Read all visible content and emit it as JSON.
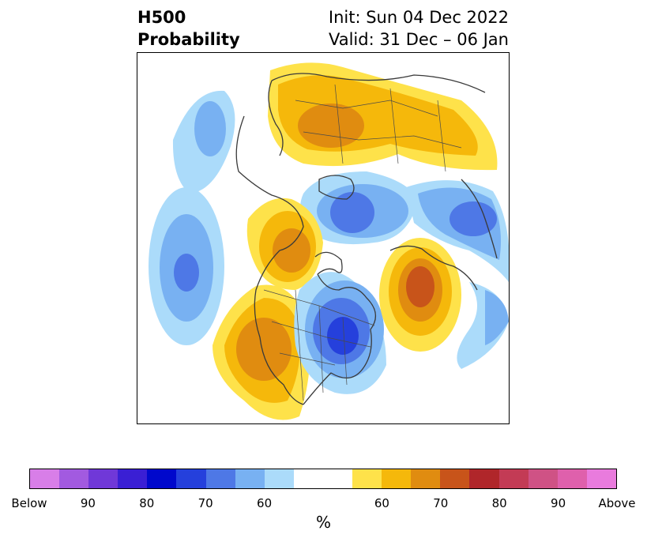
{
  "title": {
    "left_line1": "H500",
    "left_line2": "Probability",
    "right_line1": "Init: Sun 04 Dec 2022",
    "right_line2": "Valid: 31 Dec – 06 Jan"
  },
  "colorbar": {
    "below_colors": [
      "#d87ee8",
      "#a25ae0",
      "#7038d8",
      "#3a1fd4",
      "#0008cc",
      "#2540dc",
      "#4e78e6",
      "#78b1f2",
      "#abdbfa"
    ],
    "neutral_color": "#ffffff",
    "above_colors": [
      "#fee24a",
      "#f5b80b",
      "#e08c10",
      "#c8541a",
      "#b0262a",
      "#c33b55",
      "#cf5285",
      "#df60ac",
      "#e97bdd"
    ],
    "tick_labels": [
      "Below",
      "90",
      "80",
      "70",
      "60",
      "60",
      "70",
      "80",
      "90",
      "Above"
    ],
    "unit_label": "%"
  },
  "map": {
    "anomalies": [
      {
        "sign": "below",
        "region": "North Pacific",
        "levels": [
          1,
          2,
          3
        ]
      },
      {
        "sign": "below",
        "region": "Bering / Alaska north",
        "levels": [
          1,
          2
        ]
      },
      {
        "sign": "above",
        "region": "Siberia / Arctic",
        "levels": [
          1,
          2,
          3
        ]
      },
      {
        "sign": "below",
        "region": "Greenland / Arctic",
        "levels": [
          1,
          2,
          3
        ]
      },
      {
        "sign": "below",
        "region": "Scandinavia / N. Europe",
        "levels": [
          1,
          2,
          3
        ]
      },
      {
        "sign": "above",
        "region": "Western Canada / Alaska",
        "levels": [
          1,
          2,
          3
        ]
      },
      {
        "sign": "above",
        "region": "Western US / Pacific coast",
        "levels": [
          1,
          2,
          3
        ]
      },
      {
        "sign": "below",
        "region": "Central / Eastern North America",
        "levels": [
          1,
          2,
          3,
          4
        ]
      },
      {
        "sign": "above",
        "region": "North Atlantic",
        "levels": [
          1,
          2,
          3,
          4
        ]
      },
      {
        "sign": "below",
        "region": "Eastern Atlantic",
        "levels": [
          1,
          2
        ]
      }
    ]
  }
}
